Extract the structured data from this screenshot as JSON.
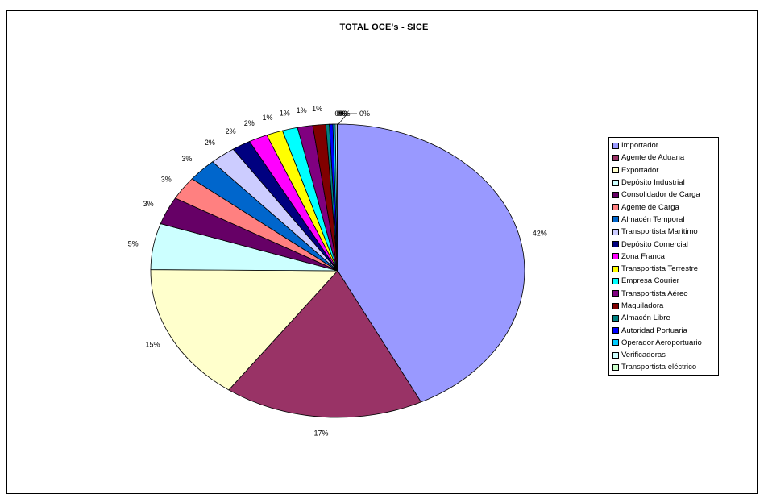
{
  "chart_data": {
    "type": "pie",
    "title": "TOTAL OCE's  -  SICE",
    "legend_position": "right",
    "slices": [
      {
        "label": "Importador",
        "value": 42,
        "data_label": "42%",
        "color": "#9999ff"
      },
      {
        "label": "Agente de Aduana",
        "value": 17,
        "data_label": "17%",
        "color": "#993366"
      },
      {
        "label": "Exportador",
        "value": 15,
        "data_label": "15%",
        "color": "#ffffcc"
      },
      {
        "label": "Depósito Industrial",
        "value": 5,
        "data_label": "5%",
        "color": "#ccffff"
      },
      {
        "label": "Consolidador de Carga",
        "value": 3,
        "data_label": "3%",
        "color": "#660066"
      },
      {
        "label": "Agente de Carga",
        "value": 2.5,
        "data_label": "3%",
        "color": "#ff8080"
      },
      {
        "label": "Almacén Temporal",
        "value": 2.5,
        "data_label": "3%",
        "color": "#0066cc"
      },
      {
        "label": "Transportista Marítimo",
        "value": 2.2,
        "data_label": "2%",
        "color": "#ccccff"
      },
      {
        "label": "Depósito Comercial",
        "value": 1.6,
        "data_label": "2%",
        "color": "#000080"
      },
      {
        "label": "Zona Franca",
        "value": 1.6,
        "data_label": "2%",
        "color": "#ff00ff"
      },
      {
        "label": "Transportista Terrestre",
        "value": 1.4,
        "data_label": "1%",
        "color": "#ffff00"
      },
      {
        "label": "Empresa Courier",
        "value": 1.3,
        "data_label": "1%",
        "color": "#00ffff"
      },
      {
        "label": "Transportista Aéreo",
        "value": 1.3,
        "data_label": "1%",
        "color": "#800080"
      },
      {
        "label": "Maquiladora",
        "value": 1.1,
        "data_label": "1%",
        "color": "#800000"
      },
      {
        "label": "Almacén Libre",
        "value": 0.3,
        "data_label": "0%",
        "color": "#008080"
      },
      {
        "label": "Autoridad Portuaria",
        "value": 0.3,
        "data_label": "0%",
        "color": "#0000ff"
      },
      {
        "label": "Operador Aeroportuario",
        "value": 0.2,
        "data_label": "0%",
        "color": "#00ccff"
      },
      {
        "label": "Verificadoras",
        "value": 0.15,
        "data_label": "0%",
        "color": "#ccffff"
      },
      {
        "label": "Transportista eléctrico",
        "value": 0.05,
        "data_label": "0%",
        "color": "#ccffcc"
      }
    ]
  }
}
